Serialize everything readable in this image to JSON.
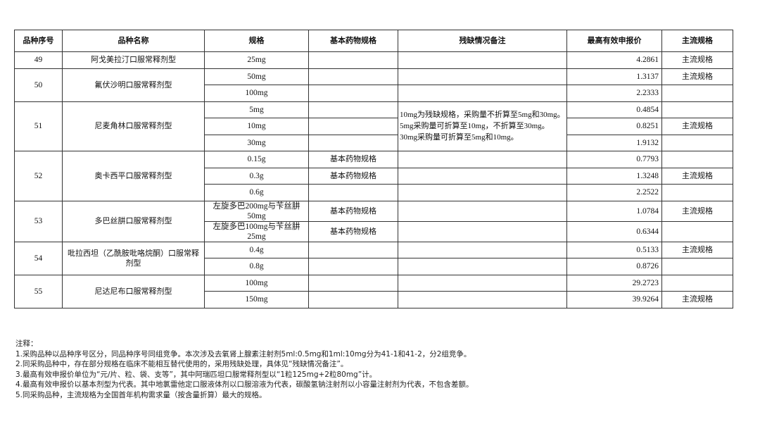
{
  "headers": [
    "品种序号",
    "品种名称",
    "规格",
    "基本药物规格",
    "残缺情况备注",
    "最高有效申报价",
    "主流规格"
  ],
  "groups": [
    {
      "id": "49",
      "name": "阿戈美拉汀口服常释剂型",
      "rows": [
        {
          "spec": "25mg",
          "essential": "",
          "price": "4.2861",
          "main": "主流规格"
        }
      ]
    },
    {
      "id": "50",
      "name": "氟伏沙明口服常释剂型",
      "rows": [
        {
          "spec": "50mg",
          "essential": "",
          "price": "1.3137",
          "main": "主流规格"
        },
        {
          "spec": "100mg",
          "essential": "",
          "price": "2.2333",
          "main": ""
        }
      ]
    },
    {
      "id": "51",
      "name": "尼麦角林口服常释剂型",
      "note": "10mg为残缺规格，采购量不折算至5mg和30mg。5mg采购量可折算至10mg，不折算至30mg。30mg采购量可折算至5mg和10mg。",
      "rows": [
        {
          "spec": "5mg",
          "essential": "",
          "price": "0.4854",
          "main": ""
        },
        {
          "spec": "10mg",
          "essential": "",
          "price": "0.8251",
          "main": "主流规格"
        },
        {
          "spec": "30mg",
          "essential": "",
          "price": "1.9132",
          "main": ""
        }
      ]
    },
    {
      "id": "52",
      "name": "奥卡西平口服常释剂型",
      "rows": [
        {
          "spec": "0.15g",
          "essential": "基本药物规格",
          "price": "0.7793",
          "main": ""
        },
        {
          "spec": "0.3g",
          "essential": "基本药物规格",
          "price": "1.3248",
          "main": "主流规格"
        },
        {
          "spec": "0.6g",
          "essential": "",
          "price": "2.2522",
          "main": ""
        }
      ]
    },
    {
      "id": "53",
      "name": "多巴丝肼口服常释剂型",
      "rows": [
        {
          "spec": "左旋多巴200mg与苄丝肼50mg",
          "essential": "基本药物规格",
          "price": "1.0784",
          "main": "主流规格"
        },
        {
          "spec": "左旋多巴100mg与苄丝肼25mg",
          "essential": "基本药物规格",
          "price": "0.6344",
          "main": ""
        }
      ]
    },
    {
      "id": "54",
      "name": "吡拉西坦（乙酰胺吡咯烷酮）口服常释剂型",
      "rows": [
        {
          "spec": "0.4g",
          "essential": "",
          "price": "0.5133",
          "main": "主流规格"
        },
        {
          "spec": "0.8g",
          "essential": "",
          "price": "0.8726",
          "main": ""
        }
      ]
    },
    {
      "id": "55",
      "name": "尼达尼布口服常释剂型",
      "rows": [
        {
          "spec": "100mg",
          "essential": "",
          "price": "29.2723",
          "main": ""
        },
        {
          "spec": "150mg",
          "essential": "",
          "price": "39.9264",
          "main": "主流规格"
        }
      ]
    }
  ],
  "notes": {
    "title": "注释：",
    "items": [
      "1.采购品种以品种序号区分，同品种序号同组竞争。本次涉及去氧肾上腺素注射剂5ml:0.5mg和1ml:10mg分为41-1和41-2，分2组竞争。",
      "2.同采购品种中，存在部分规格在临床不能相互替代使用的，采用残缺处理，具体见“残缺情况备注”。",
      "3.最高有效申报价单位为“元/片、粒、袋、支等”，其中阿瑞匹坦口服常释剂型以“1粒125mg+2粒80mg”计。",
      "4.最高有效申报价以基本剂型为代表。其中地氯雷他定口服液体剂以口服溶液为代表，碳酸氢钠注射剂以小容量注射剂为代表，不包含差额。",
      "5.同采购品种，主流规格为全国首年机构需求量（按含量折算）最大的规格。"
    ]
  }
}
